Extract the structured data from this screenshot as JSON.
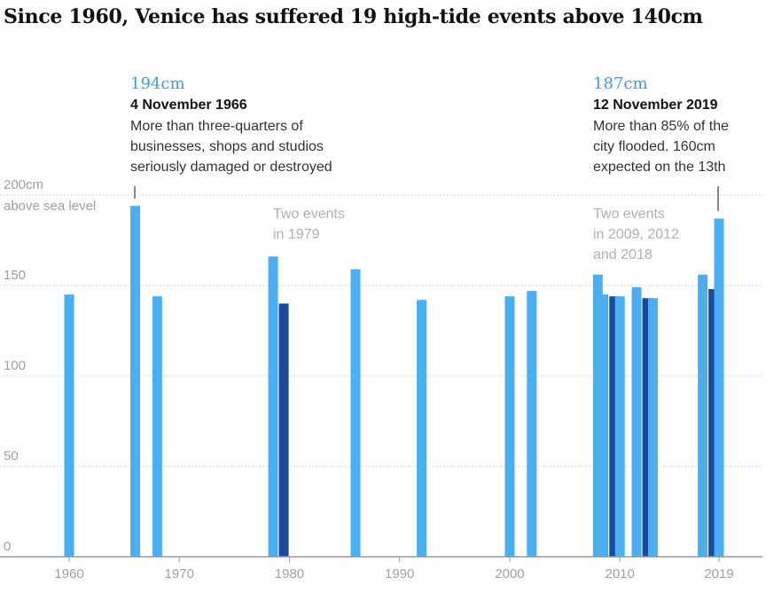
{
  "title": "Since 1960, Venice has suffered 19 high-tide events above 140cm",
  "chart_data": {
    "type": "bar",
    "title": "Since 1960, Venice has suffered 19 high-tide events above 140cm",
    "xlabel": "",
    "ylabel": "above sea level",
    "y_unit": "cm",
    "ylim": [
      0,
      200
    ],
    "xlim": [
      1957,
      2021
    ],
    "y_ticks": [
      {
        "value": 200,
        "label": "200cm"
      },
      {
        "value": 150,
        "label": "150"
      },
      {
        "value": 100,
        "label": "100"
      },
      {
        "value": 50,
        "label": "50"
      },
      {
        "value": 0,
        "label": "0"
      }
    ],
    "x_ticks": [
      {
        "value": 1960,
        "label": "1960"
      },
      {
        "value": 1970,
        "label": "1970"
      },
      {
        "value": 1980,
        "label": "1980"
      },
      {
        "value": 1990,
        "label": "1990"
      },
      {
        "value": 2000,
        "label": "2000"
      },
      {
        "value": 2010,
        "label": "2010"
      },
      {
        "value": 2019,
        "label": "2019"
      }
    ],
    "grid": true,
    "colors": {
      "light": "#4aaff0",
      "dark": "#1a4aa0",
      "axis": "#999999",
      "grid": "#d8d8d8"
    },
    "bars": [
      {
        "year": 1960,
        "value": 145
      },
      {
        "year": 1966,
        "value": 194
      },
      {
        "year": 1968,
        "value": 144
      },
      {
        "year": 1979,
        "value": 166,
        "second": 140
      },
      {
        "year": 1986,
        "value": 159
      },
      {
        "year": 1992,
        "value": 142
      },
      {
        "year": 2000,
        "value": 144
      },
      {
        "year": 2002,
        "value": 147
      },
      {
        "year": 2008,
        "value": 156
      },
      {
        "year": 2009,
        "value": 145,
        "second": 144
      },
      {
        "year": 2010,
        "value": 144
      },
      {
        "year": 2012,
        "value": 149,
        "second": 143
      },
      {
        "year": 2013,
        "value": 143
      },
      {
        "year": 2018,
        "value": 156,
        "second": 148
      },
      {
        "year": 2019,
        "value": 187
      }
    ],
    "annotations": [
      {
        "year": 1966,
        "value_label": "194cm",
        "date": "4 November 1966",
        "lines": [
          "More than three-quarters of",
          "businesses, shops and studios",
          "seriously damaged or destroyed"
        ]
      },
      {
        "year": 2019,
        "value_label": "187cm",
        "date": "12 November 2019",
        "lines": [
          "More than 85% of the",
          "city flooded. 160cm",
          "expected on the 13th"
        ]
      }
    ],
    "notes": [
      {
        "lines": [
          "Two events",
          "in 1979"
        ]
      },
      {
        "lines": [
          "Two events",
          "in 2009, 2012",
          "and 2018"
        ]
      }
    ]
  }
}
